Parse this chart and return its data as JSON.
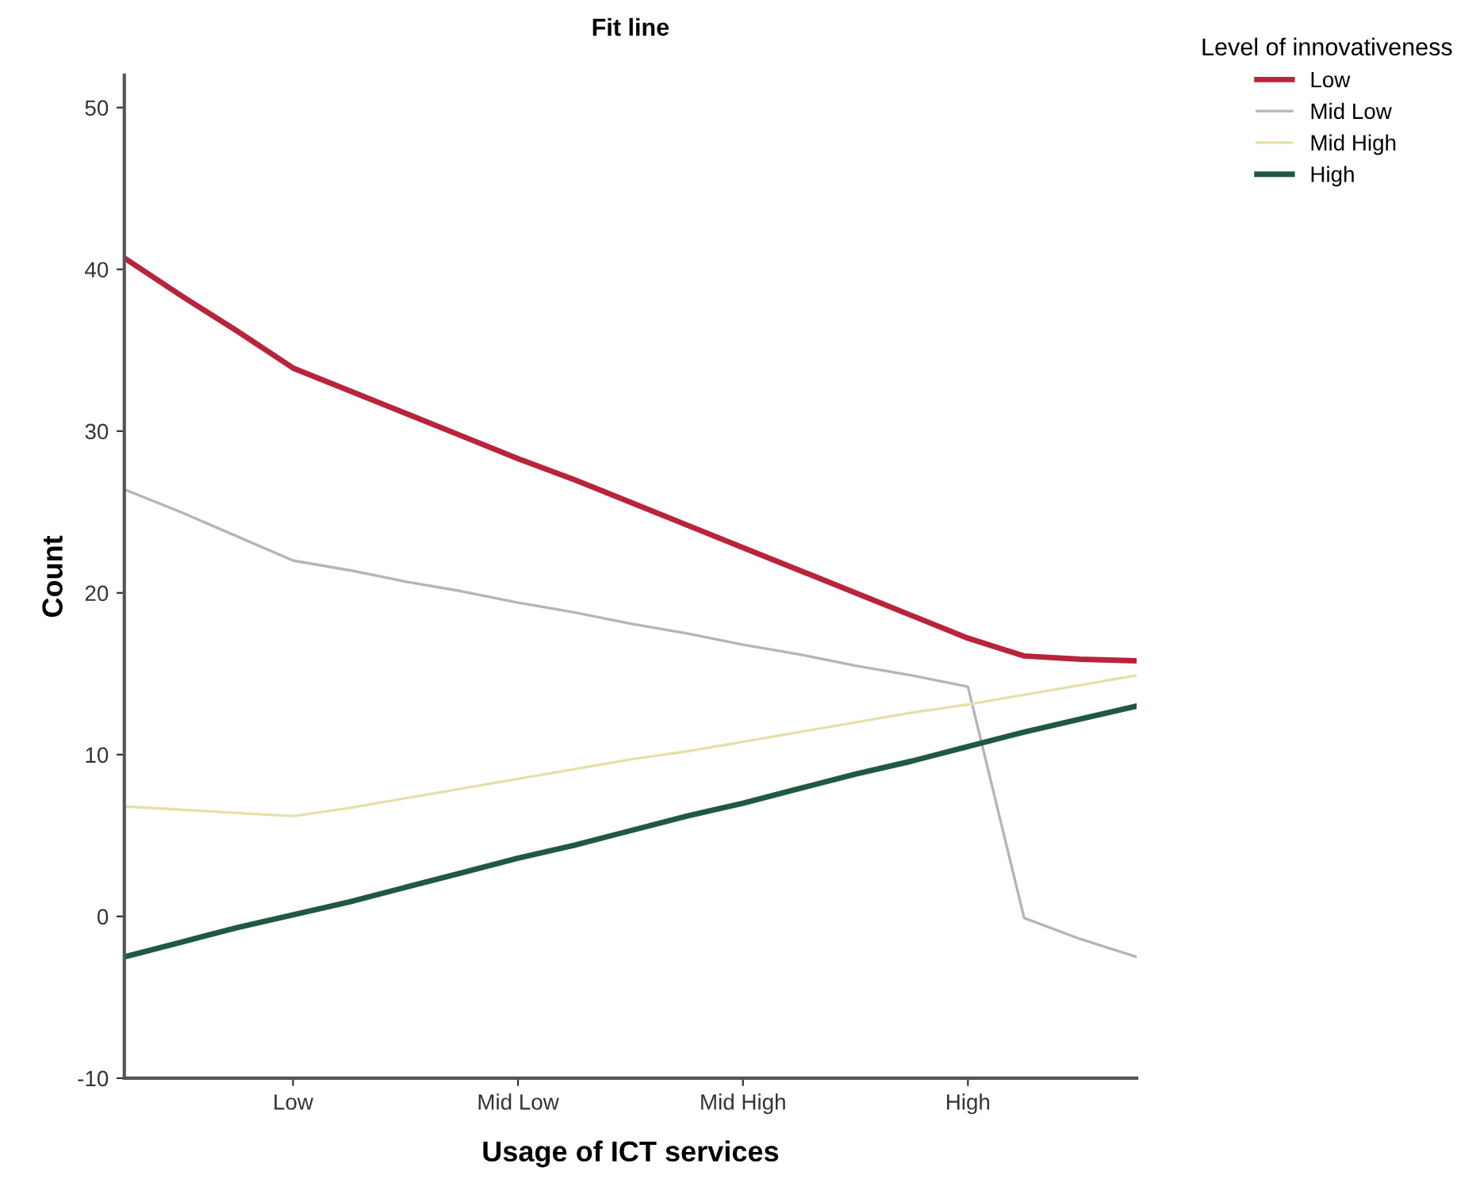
{
  "chart_data": {
    "type": "line",
    "title": "Fit line",
    "xlabel": "Usage of ICT services",
    "ylabel": "Count",
    "legend_title": "Level of innovativeness",
    "legend": "top right",
    "categories": [
      null,
      null,
      null,
      "Low",
      null,
      null,
      null,
      "Mid Low",
      null,
      null,
      null,
      "Mid High",
      null,
      null,
      null,
      "High",
      null,
      null,
      null
    ],
    "ylim": [
      -10,
      52
    ],
    "yticks": [
      -10,
      0,
      10,
      20,
      30,
      40,
      50
    ],
    "grid": false,
    "series": [
      {
        "name": "Low",
        "color": "#b8243c",
        "values": [
          40.7,
          38.4,
          36.2,
          33.9,
          32.5,
          31.1,
          29.7,
          28.3,
          27.0,
          25.6,
          24.2,
          22.8,
          21.4,
          20.0,
          18.6,
          17.2,
          16.1,
          15.9,
          15.8
        ]
      },
      {
        "name": "Mid Low",
        "color": "#b4b4bc",
        "values": [
          26.4,
          25.0,
          23.5,
          22.0,
          21.4,
          20.7,
          20.1,
          19.4,
          18.8,
          18.1,
          17.5,
          16.8,
          16.2,
          15.5,
          14.9,
          14.2,
          -0.1,
          -1.4,
          -2.5
        ]
      },
      {
        "name": "Mid High",
        "color": "#e6e0a8",
        "values": [
          6.8,
          6.6,
          6.4,
          6.2,
          6.7,
          7.3,
          7.9,
          8.5,
          9.1,
          9.7,
          10.2,
          10.8,
          11.4,
          12.0,
          12.6,
          13.1,
          13.7,
          14.3,
          14.9
        ]
      },
      {
        "name": "High",
        "color": "#1f5a40",
        "values": [
          -2.5,
          -1.6,
          -0.7,
          0.1,
          0.9,
          1.8,
          2.7,
          3.6,
          4.4,
          5.3,
          6.2,
          7.0,
          7.9,
          8.8,
          9.6,
          10.5,
          11.4,
          12.2,
          13.0
        ]
      }
    ]
  }
}
